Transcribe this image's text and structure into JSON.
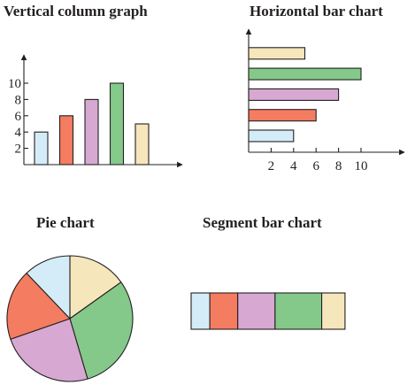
{
  "colors": {
    "blue": "#d4ecf8",
    "red": "#f47c60",
    "purple": "#d7a9d2",
    "green": "#84c98a",
    "cream": "#f6e6bb",
    "outline": "#231f20"
  },
  "chart_data": [
    {
      "type": "bar",
      "orientation": "vertical",
      "title": "Vertical column graph",
      "categories": [
        "",
        "",
        "",
        "",
        ""
      ],
      "values": [
        4,
        6,
        8,
        10,
        5
      ],
      "bar_colors": [
        "blue",
        "red",
        "purple",
        "green",
        "cream"
      ],
      "y_ticks": [
        2,
        4,
        6,
        8,
        10
      ],
      "ylim": [
        0,
        12
      ],
      "xlabel": "",
      "ylabel": "",
      "grid": false,
      "legend": "none"
    },
    {
      "type": "bar",
      "orientation": "horizontal",
      "title": "Horizontal bar chart",
      "categories": [
        "",
        "",
        "",
        "",
        ""
      ],
      "values": [
        4,
        6,
        8,
        10,
        5
      ],
      "bar_colors": [
        "blue",
        "red",
        "purple",
        "green",
        "cream"
      ],
      "x_ticks": [
        2,
        4,
        6,
        8,
        10
      ],
      "xlim": [
        0,
        12
      ],
      "xlabel": "",
      "ylabel": "",
      "grid": false,
      "legend": "none"
    },
    {
      "type": "pie",
      "title": "Pie chart",
      "values": [
        5,
        10,
        8,
        6,
        4
      ],
      "slice_colors": [
        "cream",
        "green",
        "purple",
        "red",
        "blue"
      ],
      "start": "top, clockwise",
      "legend": "none"
    },
    {
      "type": "bar",
      "orientation": "segmented",
      "title": "Segment bar chart",
      "values": [
        4,
        6,
        8,
        10,
        5
      ],
      "segment_colors": [
        "blue",
        "red",
        "purple",
        "green",
        "cream"
      ],
      "legend": "none"
    }
  ]
}
